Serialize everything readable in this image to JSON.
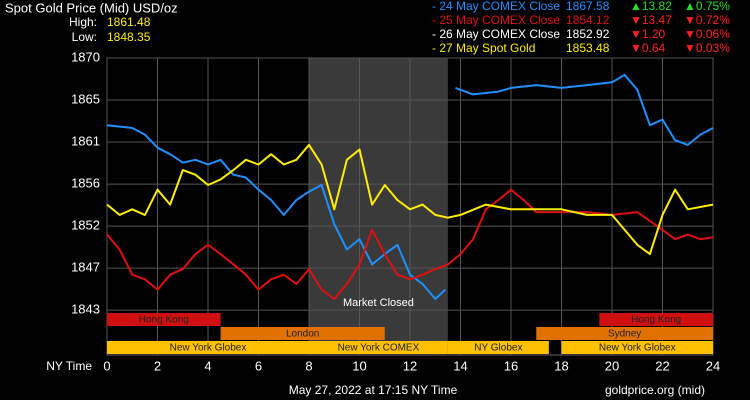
{
  "chart_data": {
    "type": "line",
    "title": "Spot Gold Price (Mid) USD/oz",
    "high_label": "High:",
    "high": 1861.48,
    "low_label": "Low:",
    "low": 1848.35,
    "xlabel": "NY Time",
    "xlim": [
      0,
      24
    ],
    "xticks": [
      0,
      2,
      4,
      6,
      8,
      10,
      12,
      14,
      16,
      18,
      20,
      22,
      24
    ],
    "ylim": [
      1838.2,
      1870
    ],
    "yticks": [
      1870,
      {
        "value": 1865.5,
        "label": "1865"
      },
      1861,
      {
        "value": 1856.5,
        "label": "1856"
      },
      1852,
      {
        "value": 1847.5,
        "label": "1847"
      },
      1843
    ],
    "grid": true,
    "closed": {
      "label": "Market Closed",
      "start": 8,
      "end": 13.5,
      "color": "#3a3a3a"
    },
    "sessions": [
      {
        "color": "#d01010",
        "bands": [
          {
            "label": "Hong Kong",
            "start": 0,
            "end": 4.5
          },
          {
            "label": "Hong Kong",
            "start": 19.5,
            "end": 24
          }
        ]
      },
      {
        "color": "#e07000",
        "bands": [
          {
            "label": "London",
            "start": 4.5,
            "end": 11
          },
          {
            "label": "Sydney",
            "start": 17,
            "end": 24
          }
        ]
      },
      {
        "color": "#ffc000",
        "bands": [
          {
            "label": "New York Globex",
            "start": 0,
            "end": 8
          },
          {
            "label": "New York COMEX",
            "start": 8,
            "end": 13.5
          },
          {
            "label": "NY Globex",
            "start": 13.5,
            "end": 17.5
          },
          {
            "label": "New York Globex",
            "start": 18,
            "end": 24
          }
        ]
      }
    ],
    "series": [
      {
        "name": "- 24 May COMEX Close",
        "color": "#1e90ff",
        "close": 1867.58,
        "change": "▲13.82",
        "change_pct": "▲0.75%",
        "change_color": "#22dd22",
        "x": [
          0,
          1,
          1.5,
          2,
          2.5,
          3,
          3.5,
          4,
          4.5,
          5,
          5.5,
          6,
          6.5,
          7,
          7.5,
          8,
          8.5,
          9,
          9.5,
          10,
          10.5,
          11,
          11.5,
          12,
          12.5,
          13,
          13.4,
          13.6,
          13.8,
          14.5,
          15.5,
          16,
          17,
          18,
          19,
          20,
          20.5,
          21,
          21.5,
          22,
          22.5,
          23,
          23.5,
          24
        ],
        "values": [
          1862.8,
          1862.5,
          1861.8,
          1860.4,
          1859.7,
          1858.8,
          1859.1,
          1858.6,
          1859.1,
          1857.5,
          1857.2,
          1855.9,
          1854.8,
          1853.2,
          1854.8,
          1855.7,
          1856.4,
          1852.2,
          1849.5,
          1850.6,
          1847.9,
          1849,
          1850,
          1846.8,
          1845.8,
          1844.2,
          1845.2,
          null,
          1866.8,
          1866.1,
          1866.4,
          1866.8,
          1867.1,
          1866.8,
          1867.1,
          1867.4,
          1868.2,
          1866.6,
          1862.8,
          1863.4,
          1861.2,
          1860.7,
          1861.8,
          1862.5
        ]
      },
      {
        "name": "- 25 May COMEX Close",
        "color": "#e01010",
        "close": 1854.12,
        "change": "▼13.47",
        "change_pct": "▼0.72%",
        "change_color": "#ff2020",
        "x": [
          0,
          0.5,
          1,
          1.5,
          2,
          2.5,
          3,
          3.5,
          4,
          4.5,
          5,
          5.5,
          6,
          6.5,
          7,
          7.5,
          8,
          8.5,
          9,
          9.5,
          10,
          10.5,
          11,
          11.5,
          12,
          12.5,
          13,
          13.5,
          14,
          14.5,
          15,
          15.5,
          16,
          16.5,
          17,
          18,
          19,
          20,
          21,
          22,
          22.5,
          23,
          23.5,
          24
        ],
        "values": [
          1851.1,
          1849.5,
          1846.8,
          1846.3,
          1845.2,
          1846.8,
          1847.4,
          1849,
          1850,
          1849,
          1847.9,
          1846.8,
          1845.2,
          1846.3,
          1846.8,
          1845.8,
          1847.4,
          1845.2,
          1844.2,
          1845.8,
          1847.9,
          1851.6,
          1849,
          1846.8,
          1846.3,
          1846.8,
          1847.4,
          1847.9,
          1849,
          1850.6,
          1853.8,
          1854.8,
          1855.9,
          1854.8,
          1853.5,
          1853.5,
          1853.5,
          1853.2,
          1853.5,
          1851.6,
          1850.6,
          1851.1,
          1850.6,
          1850.8
        ]
      },
      {
        "name": "- 26 May COMEX Close",
        "color": "#ffffff",
        "close": 1852.92,
        "change": "▼1.20",
        "change_pct": "▼0.06%",
        "change_color": "#ff2020"
      },
      {
        "name": "- 27 May Spot Gold",
        "color": "#ffee00",
        "close": 1853.48,
        "change": "▼0.64",
        "change_pct": "▼0.03%",
        "change_color": "#ff2020",
        "x": [
          0,
          0.5,
          1,
          1.5,
          2,
          2.5,
          3,
          3.5,
          4,
          4.5,
          5,
          5.5,
          6,
          6.5,
          7,
          7.5,
          8,
          8.5,
          9,
          9.5,
          10,
          10.5,
          11,
          11.5,
          12,
          12.5,
          13,
          13.5,
          14,
          15,
          16,
          17,
          18,
          19,
          20,
          21,
          21.5,
          22,
          22.5,
          23,
          24
        ],
        "values": [
          1854.3,
          1853.2,
          1853.8,
          1853.2,
          1855.9,
          1854.3,
          1858,
          1857.5,
          1856.4,
          1857,
          1858,
          1859.1,
          1858.6,
          1859.7,
          1858.6,
          1859.1,
          1860.7,
          1858.6,
          1853.8,
          1859.1,
          1860.2,
          1854.3,
          1856.4,
          1854.8,
          1853.8,
          1854.3,
          1853.2,
          1852.9,
          1853.2,
          1854.3,
          1853.8,
          1853.8,
          1853.8,
          1853.2,
          1853.2,
          1850,
          1849,
          1853.2,
          1855.9,
          1853.8,
          1854.3
        ]
      }
    ],
    "footer": "May 27, 2022 at 17:15 NY Time",
    "source": "goldprice.org (mid)"
  }
}
